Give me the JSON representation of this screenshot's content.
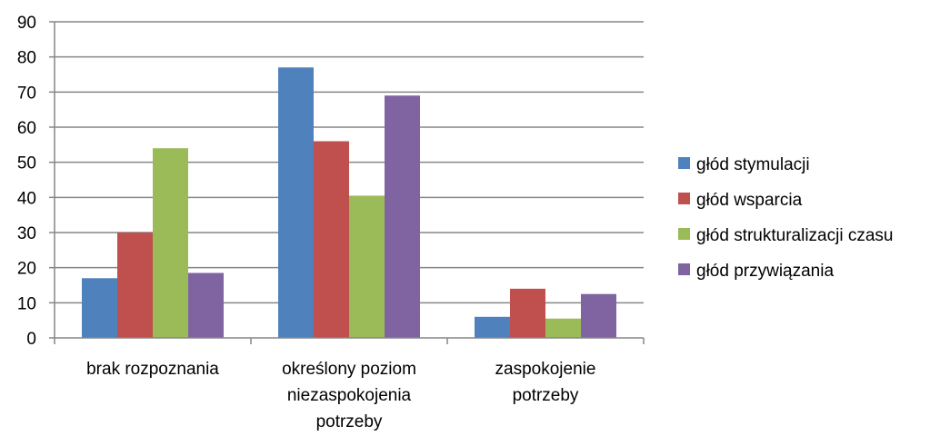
{
  "chart_data": {
    "type": "bar",
    "title": "",
    "xlabel": "",
    "ylabel": "",
    "ylim": [
      0,
      90
    ],
    "y_ticks": [
      0,
      10,
      20,
      30,
      40,
      50,
      60,
      70,
      80,
      90
    ],
    "grid": true,
    "legend_position": "right",
    "categories": [
      [
        "brak rozpoznania"
      ],
      [
        "określony poziom",
        "niezaspokojenia",
        "potrzeby"
      ],
      [
        "zaspokojenie",
        "potrzeby"
      ]
    ],
    "series": [
      {
        "name": "głód stymulacji",
        "color": "#4F81BD",
        "values": [
          17,
          77,
          6
        ]
      },
      {
        "name": "głód wsparcia",
        "color": "#C0504D",
        "values": [
          30,
          56,
          14
        ]
      },
      {
        "name": "głód strukturalizacji czasu",
        "color": "#9BBB59",
        "values": [
          54,
          40.5,
          5.5
        ]
      },
      {
        "name": "głód przywiązania",
        "color": "#8064A2",
        "values": [
          18.5,
          69,
          12.5
        ]
      }
    ]
  }
}
